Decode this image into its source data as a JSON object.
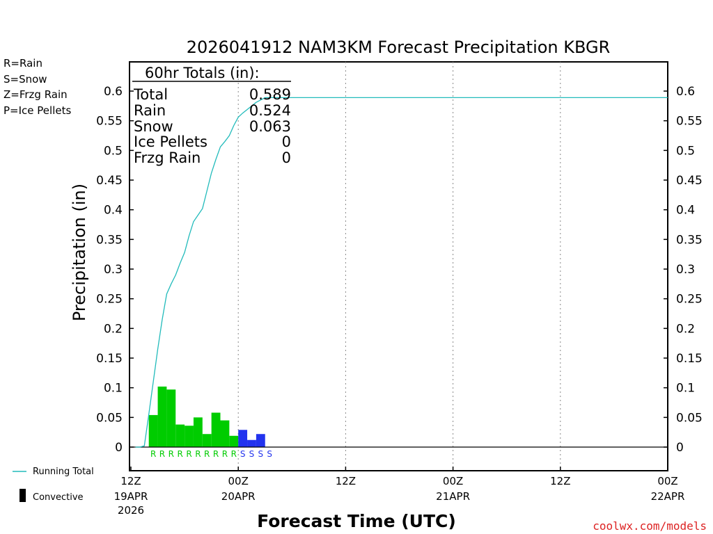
{
  "chart_data": {
    "type": "bar",
    "title": "2026041912 NAM3KM Forecast Precipitation KBGR",
    "xlabel": "Forecast Time (UTC)",
    "ylabel": "Precipitation (in)",
    "ylim": [
      -0.04,
      0.64
    ],
    "xlim_hours": [
      0,
      60
    ],
    "yticks": [
      0,
      0.05,
      0.1,
      0.15,
      0.2,
      0.25,
      0.3,
      0.35,
      0.4,
      0.45,
      0.5,
      0.55,
      0.6
    ],
    "ytick_labels": [
      "0",
      "0.05",
      "0.1",
      "0.15",
      "0.2",
      "0.25",
      "0.3",
      "0.35",
      "0.4",
      "0.45",
      "0.5",
      "0.55",
      "0.6"
    ],
    "xticks": [
      {
        "hour": 0,
        "label": "12Z",
        "date": "19APR",
        "year": "2026"
      },
      {
        "hour": 12,
        "label": "00Z",
        "date": "20APR",
        "year": ""
      },
      {
        "hour": 24,
        "label": "12Z",
        "date": "",
        "year": ""
      },
      {
        "hour": 36,
        "label": "00Z",
        "date": "21APR",
        "year": ""
      },
      {
        "hour": 48,
        "label": "12Z",
        "date": "",
        "year": ""
      },
      {
        "hour": 60,
        "label": "00Z",
        "date": "22APR",
        "year": ""
      }
    ],
    "bars": [
      {
        "hour": 3,
        "value": 0.054,
        "type": "R"
      },
      {
        "hour": 4,
        "value": 0.102,
        "type": "R"
      },
      {
        "hour": 5,
        "value": 0.097,
        "type": "R"
      },
      {
        "hour": 6,
        "value": 0.038,
        "type": "R"
      },
      {
        "hour": 7,
        "value": 0.036,
        "type": "R"
      },
      {
        "hour": 8,
        "value": 0.05,
        "type": "R"
      },
      {
        "hour": 9,
        "value": 0.022,
        "type": "R"
      },
      {
        "hour": 10,
        "value": 0.058,
        "type": "R"
      },
      {
        "hour": 11,
        "value": 0.045,
        "type": "R"
      },
      {
        "hour": 12,
        "value": 0.019,
        "type": "R"
      },
      {
        "hour": 13,
        "value": 0.029,
        "type": "S"
      },
      {
        "hour": 14,
        "value": 0.012,
        "type": "S"
      },
      {
        "hour": 15,
        "value": 0.022,
        "type": "S"
      },
      {
        "hour": 16,
        "value": 0.0,
        "type": "S"
      }
    ],
    "running_total": {
      "x": [
        0.5,
        1,
        1.5,
        2,
        2.5,
        3,
        3.5,
        4,
        4.5,
        5,
        5.5,
        6,
        6.5,
        7,
        7.5,
        8,
        8.5,
        9,
        9.5,
        10,
        10.5,
        11,
        11.5,
        12,
        12.5,
        13,
        14,
        15,
        60
      ],
      "y": [
        0.0,
        0.0,
        0.002,
        0.055,
        0.11,
        0.165,
        0.215,
        0.258,
        0.275,
        0.29,
        0.31,
        0.328,
        0.356,
        0.38,
        0.391,
        0.402,
        0.432,
        0.462,
        0.485,
        0.506,
        0.515,
        0.525,
        0.542,
        0.556,
        0.563,
        0.569,
        0.581,
        0.589,
        0.589
      ]
    },
    "colors": {
      "R": "#00cc00",
      "S": "#2233ee",
      "Z": "#ee8833",
      "P": "#ee2277",
      "running_total": "#22bbbb"
    }
  },
  "totals_box": {
    "header": "60hr Totals (in):",
    "rows": [
      {
        "label": "Total",
        "value": "0.589"
      },
      {
        "label": "Rain",
        "value": "0.524"
      },
      {
        "label": "Snow",
        "value": "0.063"
      },
      {
        "label": "Ice Pellets",
        "value": "0"
      },
      {
        "label": "Frzg Rain",
        "value": "0"
      }
    ]
  },
  "type_legend": [
    {
      "text": "R=Rain",
      "color": "#00cc00"
    },
    {
      "text": "S=Snow",
      "color": "#2233ee"
    },
    {
      "text": "Z=Frzg Rain",
      "color": "#ee8833"
    },
    {
      "text": "P=Ice Pellets",
      "color": "#ee2277"
    }
  ],
  "bottom_legend": {
    "running_total_label": "Running Total",
    "convective_label": "Convective"
  },
  "credit": "coolwx.com/models"
}
